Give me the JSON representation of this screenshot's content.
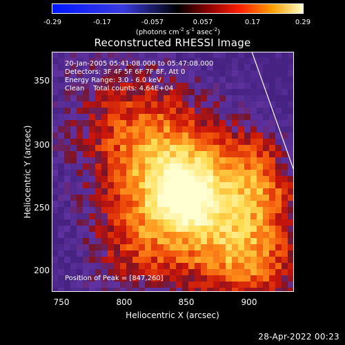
{
  "colorbar": {
    "ticks": [
      "-0.29",
      "-0.17",
      "-0.057",
      "0.057",
      "0.17",
      "0.29"
    ],
    "units_prefix": "(photons cm",
    "units_exp1": "-2",
    "units_mid": " s",
    "units_exp2": "-1",
    "units_mid2": " asec",
    "units_exp3": "-2",
    "units_suffix": ")",
    "range": [
      -0.29,
      0.29
    ]
  },
  "title": "Reconstructed RHESSI Image",
  "info_lines": [
    "20-Jan-2005 05:41:08.000 to 05:47:08.000",
    "Detectors: 3F 4F 5F 6F 7F 8F, Att 0",
    "Energy Range: 3.0 - 6.0 keV",
    "Clean    Total counts: 4.64E+04"
  ],
  "peak_text": "Position of Peak = [847,260]",
  "axes": {
    "xlabel": "Heliocentric X (arcsec)",
    "ylabel": "Heliocentric Y (arcsec)",
    "xticks": [
      "750",
      "800",
      "850",
      "900"
    ],
    "yticks": [
      "350",
      "300",
      "250",
      "200"
    ],
    "xrange": [
      740,
      935
    ],
    "yrange": [
      183,
      375
    ]
  },
  "timestamp": "28-Apr-2022 00:23",
  "colors": {
    "background": "#000000",
    "purple_low": "#5a2d9c",
    "red_mid": "#c8140a",
    "orange": "#ff7a10",
    "yellow_high": "#fff7a0"
  }
}
